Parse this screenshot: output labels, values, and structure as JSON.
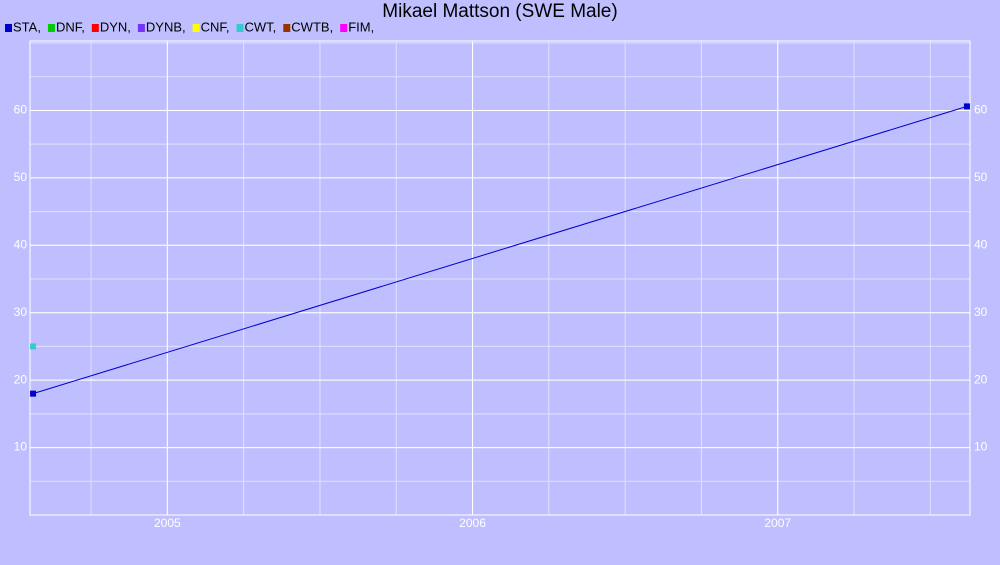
{
  "chart_data": {
    "type": "line",
    "title": "Mikael Mattson (SWE Male)",
    "series": [
      {
        "name": "STA,",
        "color": "#0000cc",
        "x": [
          2004.56,
          2007.62
        ],
        "values": [
          18,
          60.6
        ]
      },
      {
        "name": "DNF,",
        "color": "#00cc00",
        "x": [],
        "values": []
      },
      {
        "name": "DYN,",
        "color": "#ff0000",
        "x": [],
        "values": []
      },
      {
        "name": "DYNB,",
        "color": "#7733ff",
        "x": [],
        "values": []
      },
      {
        "name": "CNF,",
        "color": "#ffff00",
        "x": [],
        "values": []
      },
      {
        "name": "CWT,",
        "color": "#33cccc",
        "x": [
          2004.56
        ],
        "values": [
          25
        ]
      },
      {
        "name": "CWTB,",
        "color": "#993300",
        "x": [],
        "values": []
      },
      {
        "name": "FIM,",
        "color": "#ff00ff",
        "x": [],
        "values": []
      }
    ],
    "xlim": [
      2004.55,
      2007.63
    ],
    "xticks": [
      2005,
      2006,
      2007
    ],
    "ylim": [
      0,
      70.3
    ],
    "yticks": [
      10,
      20,
      30,
      40,
      50,
      60
    ],
    "grid": true
  }
}
